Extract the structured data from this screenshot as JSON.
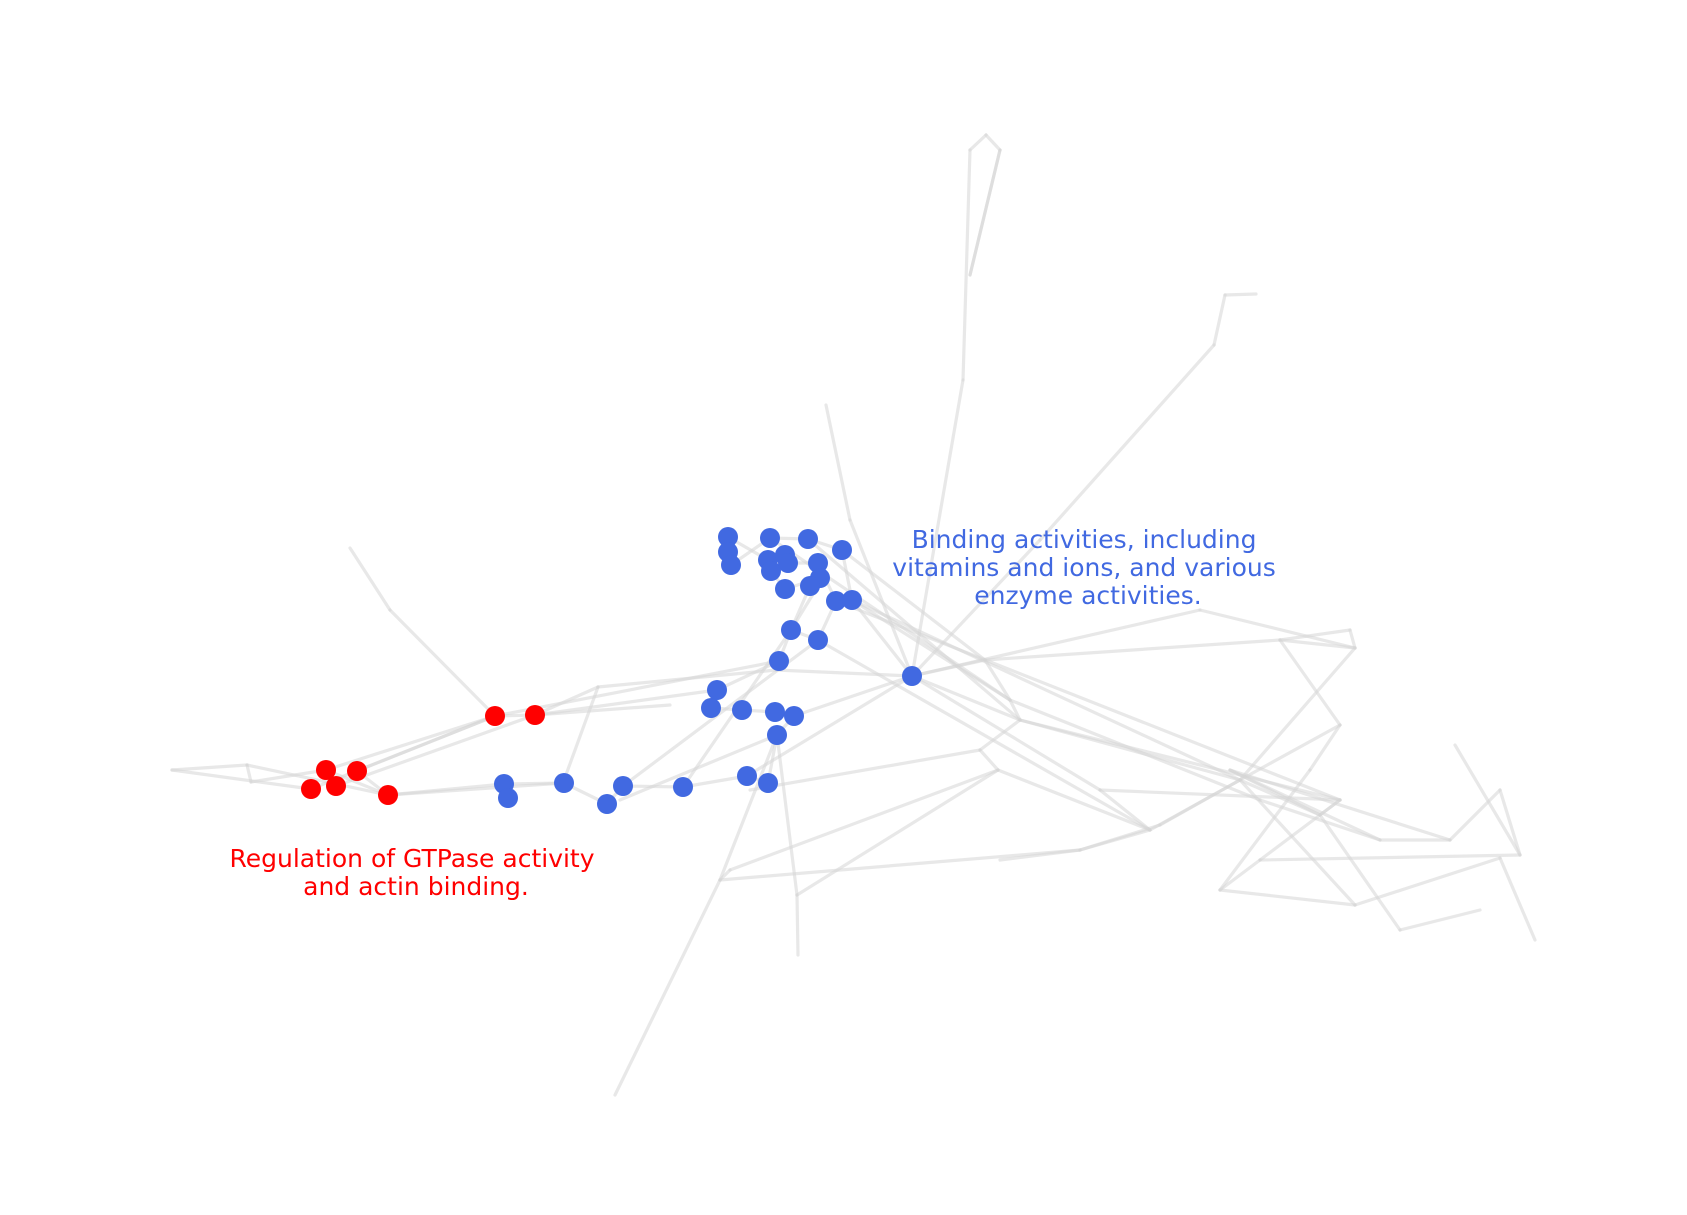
{
  "colors": {
    "blue_cluster": "#4169e1",
    "red_cluster": "#ff0000",
    "edge": "#d6d6d6",
    "background": "#ffffff"
  },
  "annotations": {
    "blue": [
      "Binding activities, including",
      "vitamins and ions, and various",
      "enzyme activities."
    ],
    "red": [
      "Regulation of GTPase activity",
      "and actin binding."
    ]
  }
}
